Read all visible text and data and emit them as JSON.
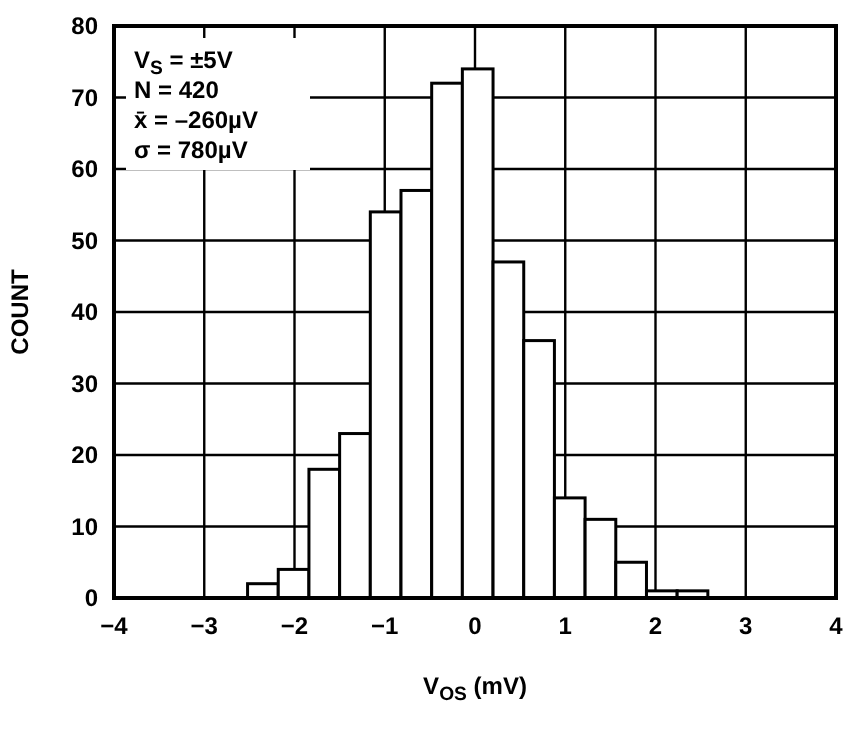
{
  "chart_data": {
    "type": "histogram",
    "xlabel": "V$_{OS}$ (mV)",
    "ylabel": "COUNT",
    "bins": [
      -2.52,
      -2.18,
      -1.84,
      -1.5,
      -1.16,
      -0.82,
      -0.48,
      -0.14,
      0.2,
      0.54,
      0.88,
      1.22,
      1.56,
      1.9,
      2.24,
      2.58
    ],
    "values": [
      2,
      4,
      18,
      23,
      54,
      57,
      72,
      74,
      47,
      36,
      14,
      11,
      5,
      1,
      1
    ],
    "color": "#ffffff",
    "xlim": [
      -4,
      4
    ],
    "xticks": [
      -4,
      -3,
      -2,
      -1,
      0,
      1,
      2,
      3,
      4
    ],
    "ylim": [
      0,
      80
    ],
    "yticks": [
      0,
      10,
      20,
      30,
      40,
      50,
      60,
      70,
      80
    ],
    "grid": true,
    "annotations": [
      "V$_{S}$ = ±5V",
      "N = 420",
      "x̄ = –260µV",
      "σ = 780µV"
    ]
  }
}
